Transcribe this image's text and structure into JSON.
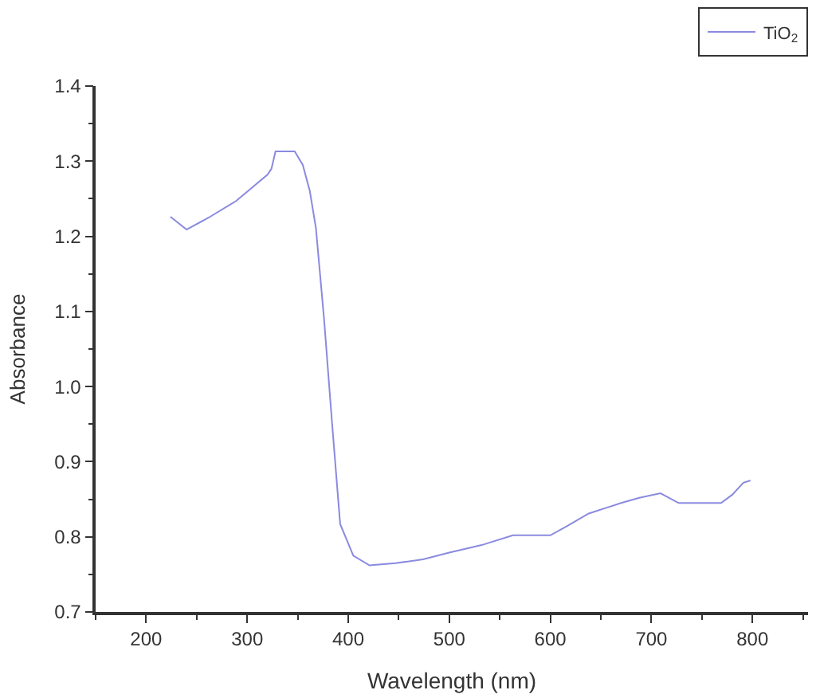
{
  "chart_data": {
    "type": "line",
    "xlabel": "Wavelength (nm)",
    "ylabel": "Absorbance",
    "xlim": [
      150,
      855
    ],
    "xticks": [
      200,
      300,
      400,
      500,
      600,
      700,
      800
    ],
    "ylim": [
      0.7,
      1.4
    ],
    "yticks": [
      0.7,
      0.8,
      0.9,
      {
        "value": 1,
        "label": "1.0"
      },
      1.1,
      1.2,
      1.3,
      1.4
    ],
    "legend": "top right",
    "x": [
      224,
      240,
      262,
      289,
      320,
      324,
      328,
      347,
      355,
      362,
      368,
      376,
      384,
      392,
      405,
      421,
      447,
      474,
      500,
      532,
      563,
      600,
      616,
      638,
      670,
      688,
      709,
      727,
      769,
      780,
      791,
      798
    ],
    "series": [
      {
        "name": "TiO$_{2}$",
        "color": "#8a8ae0",
        "values": [
          1.226,
          1.209,
          1.225,
          1.247,
          1.282,
          1.29,
          1.313,
          1.313,
          1.295,
          1.26,
          1.211,
          1.091,
          0.951,
          0.817,
          0.775,
          0.762,
          0.765,
          0.77,
          0.779,
          0.789,
          0.802,
          0.802,
          0.814,
          0.831,
          0.845,
          0.852,
          0.858,
          0.845,
          0.845,
          0.856,
          0.872,
          0.875
        ]
      }
    ]
  }
}
